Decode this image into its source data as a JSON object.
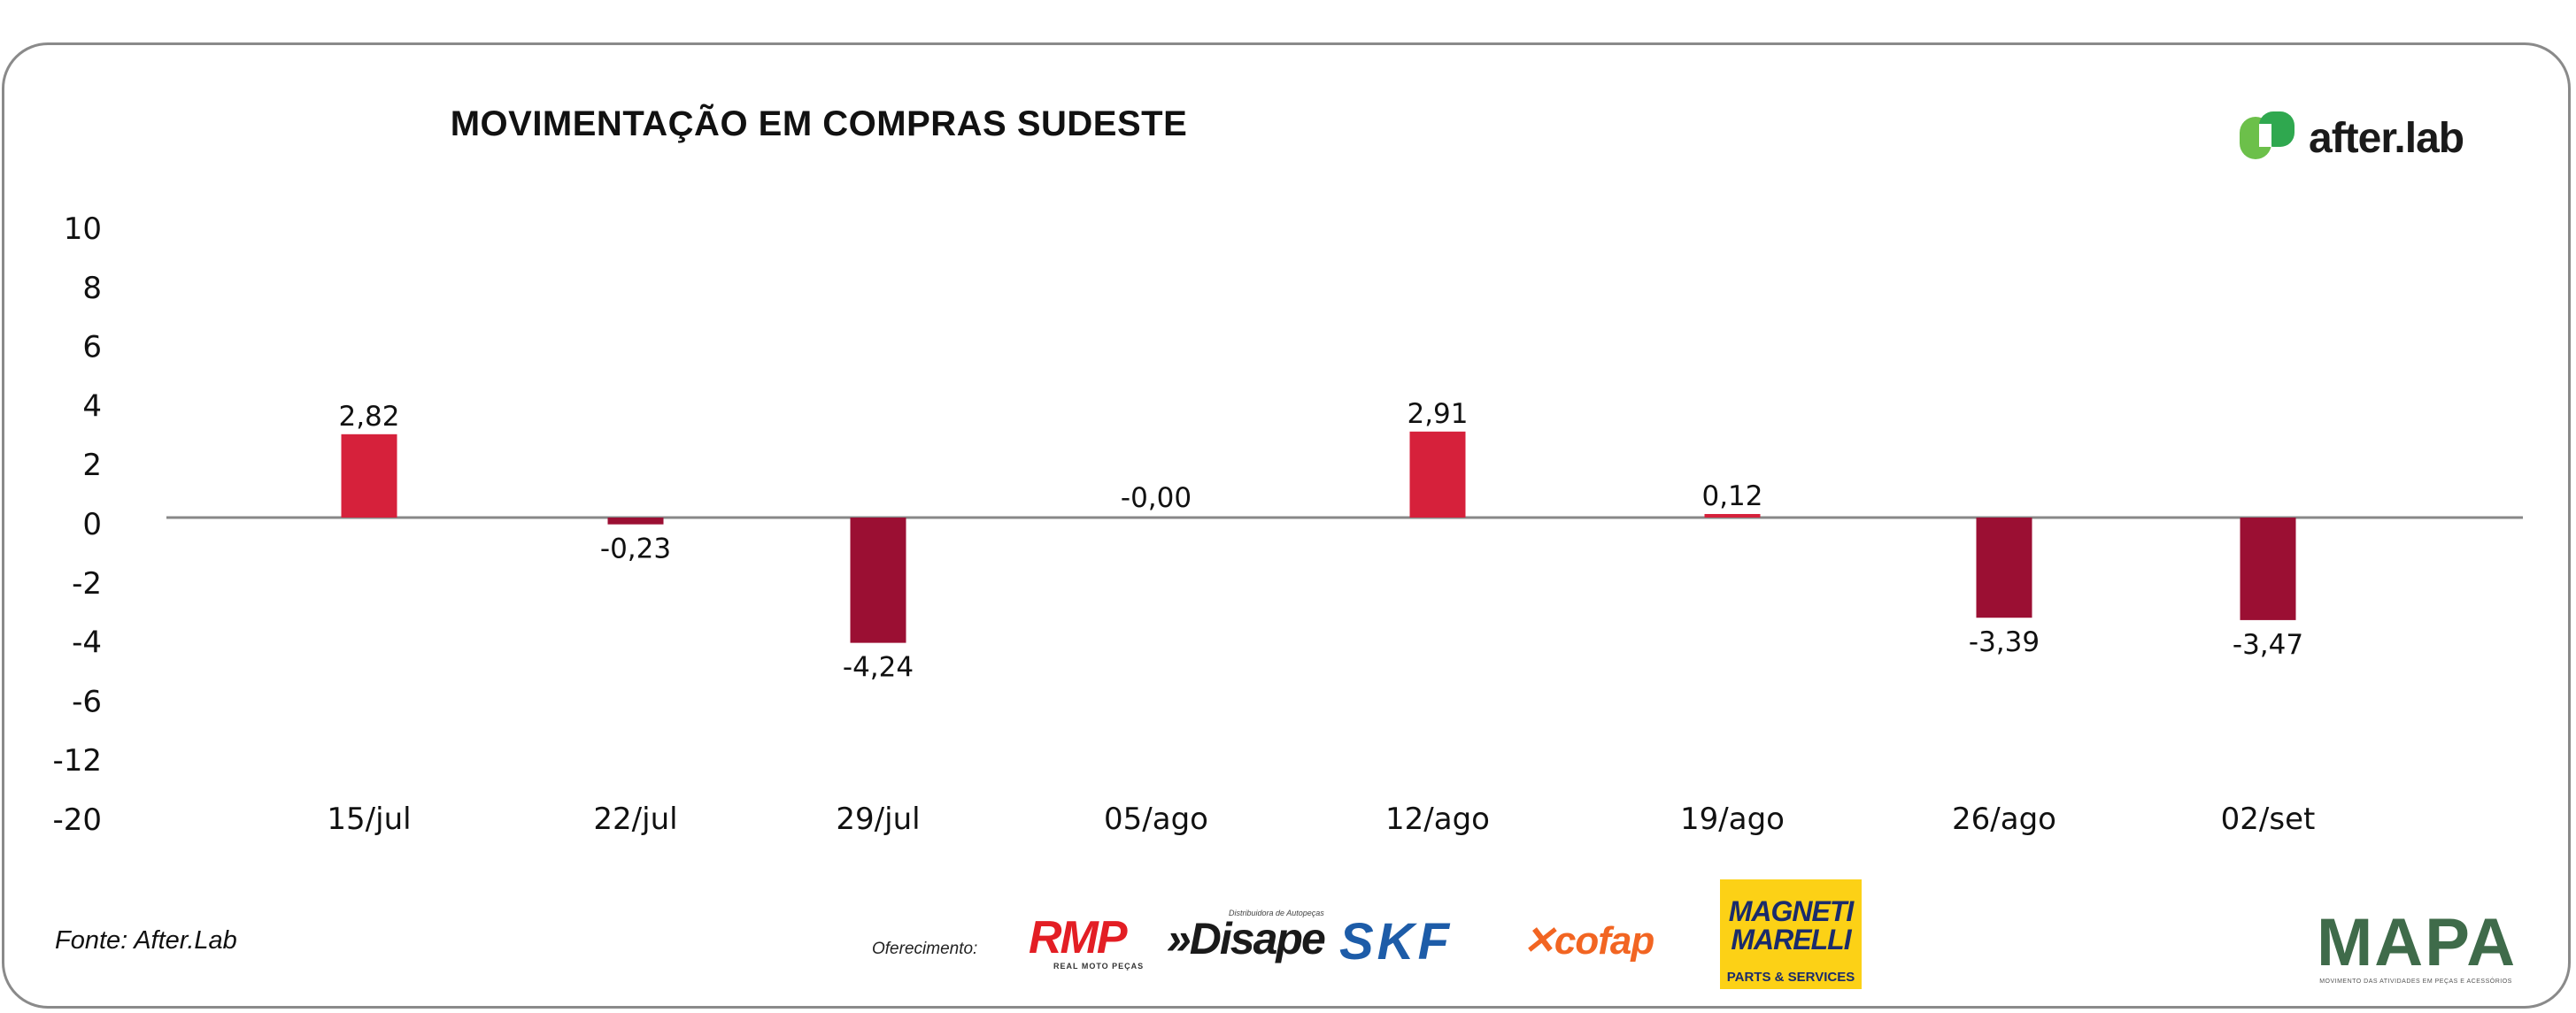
{
  "chart_data": {
    "type": "bar",
    "title": "MOVIMENTAÇÃO EM COMPRAS SUDESTE",
    "categories": [
      "15/jul",
      "22/jul",
      "29/jul",
      "05/ago",
      "12/ago",
      "19/ago",
      "26/ago",
      "02/set"
    ],
    "values": [
      2.82,
      -0.23,
      -4.24,
      0.0,
      2.91,
      0.12,
      -3.39,
      -3.47
    ],
    "value_labels": [
      "2,82",
      "-0,23",
      "-4,24",
      "-0,00",
      "2,91",
      "0,12",
      "-3,39",
      "-3,47"
    ],
    "y_ticks": [
      "10",
      "8",
      "6",
      "4",
      "2",
      "0",
      "-2",
      "-4",
      "-6",
      "-12",
      "-20"
    ],
    "xlabel": "",
    "ylabel": "",
    "grid": false,
    "legend": "none",
    "colors": {
      "positive": "#d6213b",
      "negative": "#9b0f33",
      "baseline": "#888888"
    }
  },
  "brand": {
    "name": "after.lab",
    "colors": [
      "#6cc04a",
      "#2fa84f"
    ]
  },
  "footer": {
    "source": "Fonte: After.Lab",
    "sponsor_label": "Oferecimento:",
    "sponsors": {
      "rmp": "RMP",
      "rmp_sub": "REAL MOTO PEÇAS",
      "disape": "»Disape",
      "disape_sub": "Distribuidora de Autopeças",
      "skf": "SKF",
      "cofap": "cofap",
      "magneti_1": "MAGNETI",
      "magneti_2": "MARELLI",
      "magneti_3": "PARTS & SERVICES"
    },
    "mapa": "MAPA",
    "mapa_sub": "MOVIMENTO DAS ATIVIDADES EM PEÇAS E ACESSÓRIOS"
  }
}
